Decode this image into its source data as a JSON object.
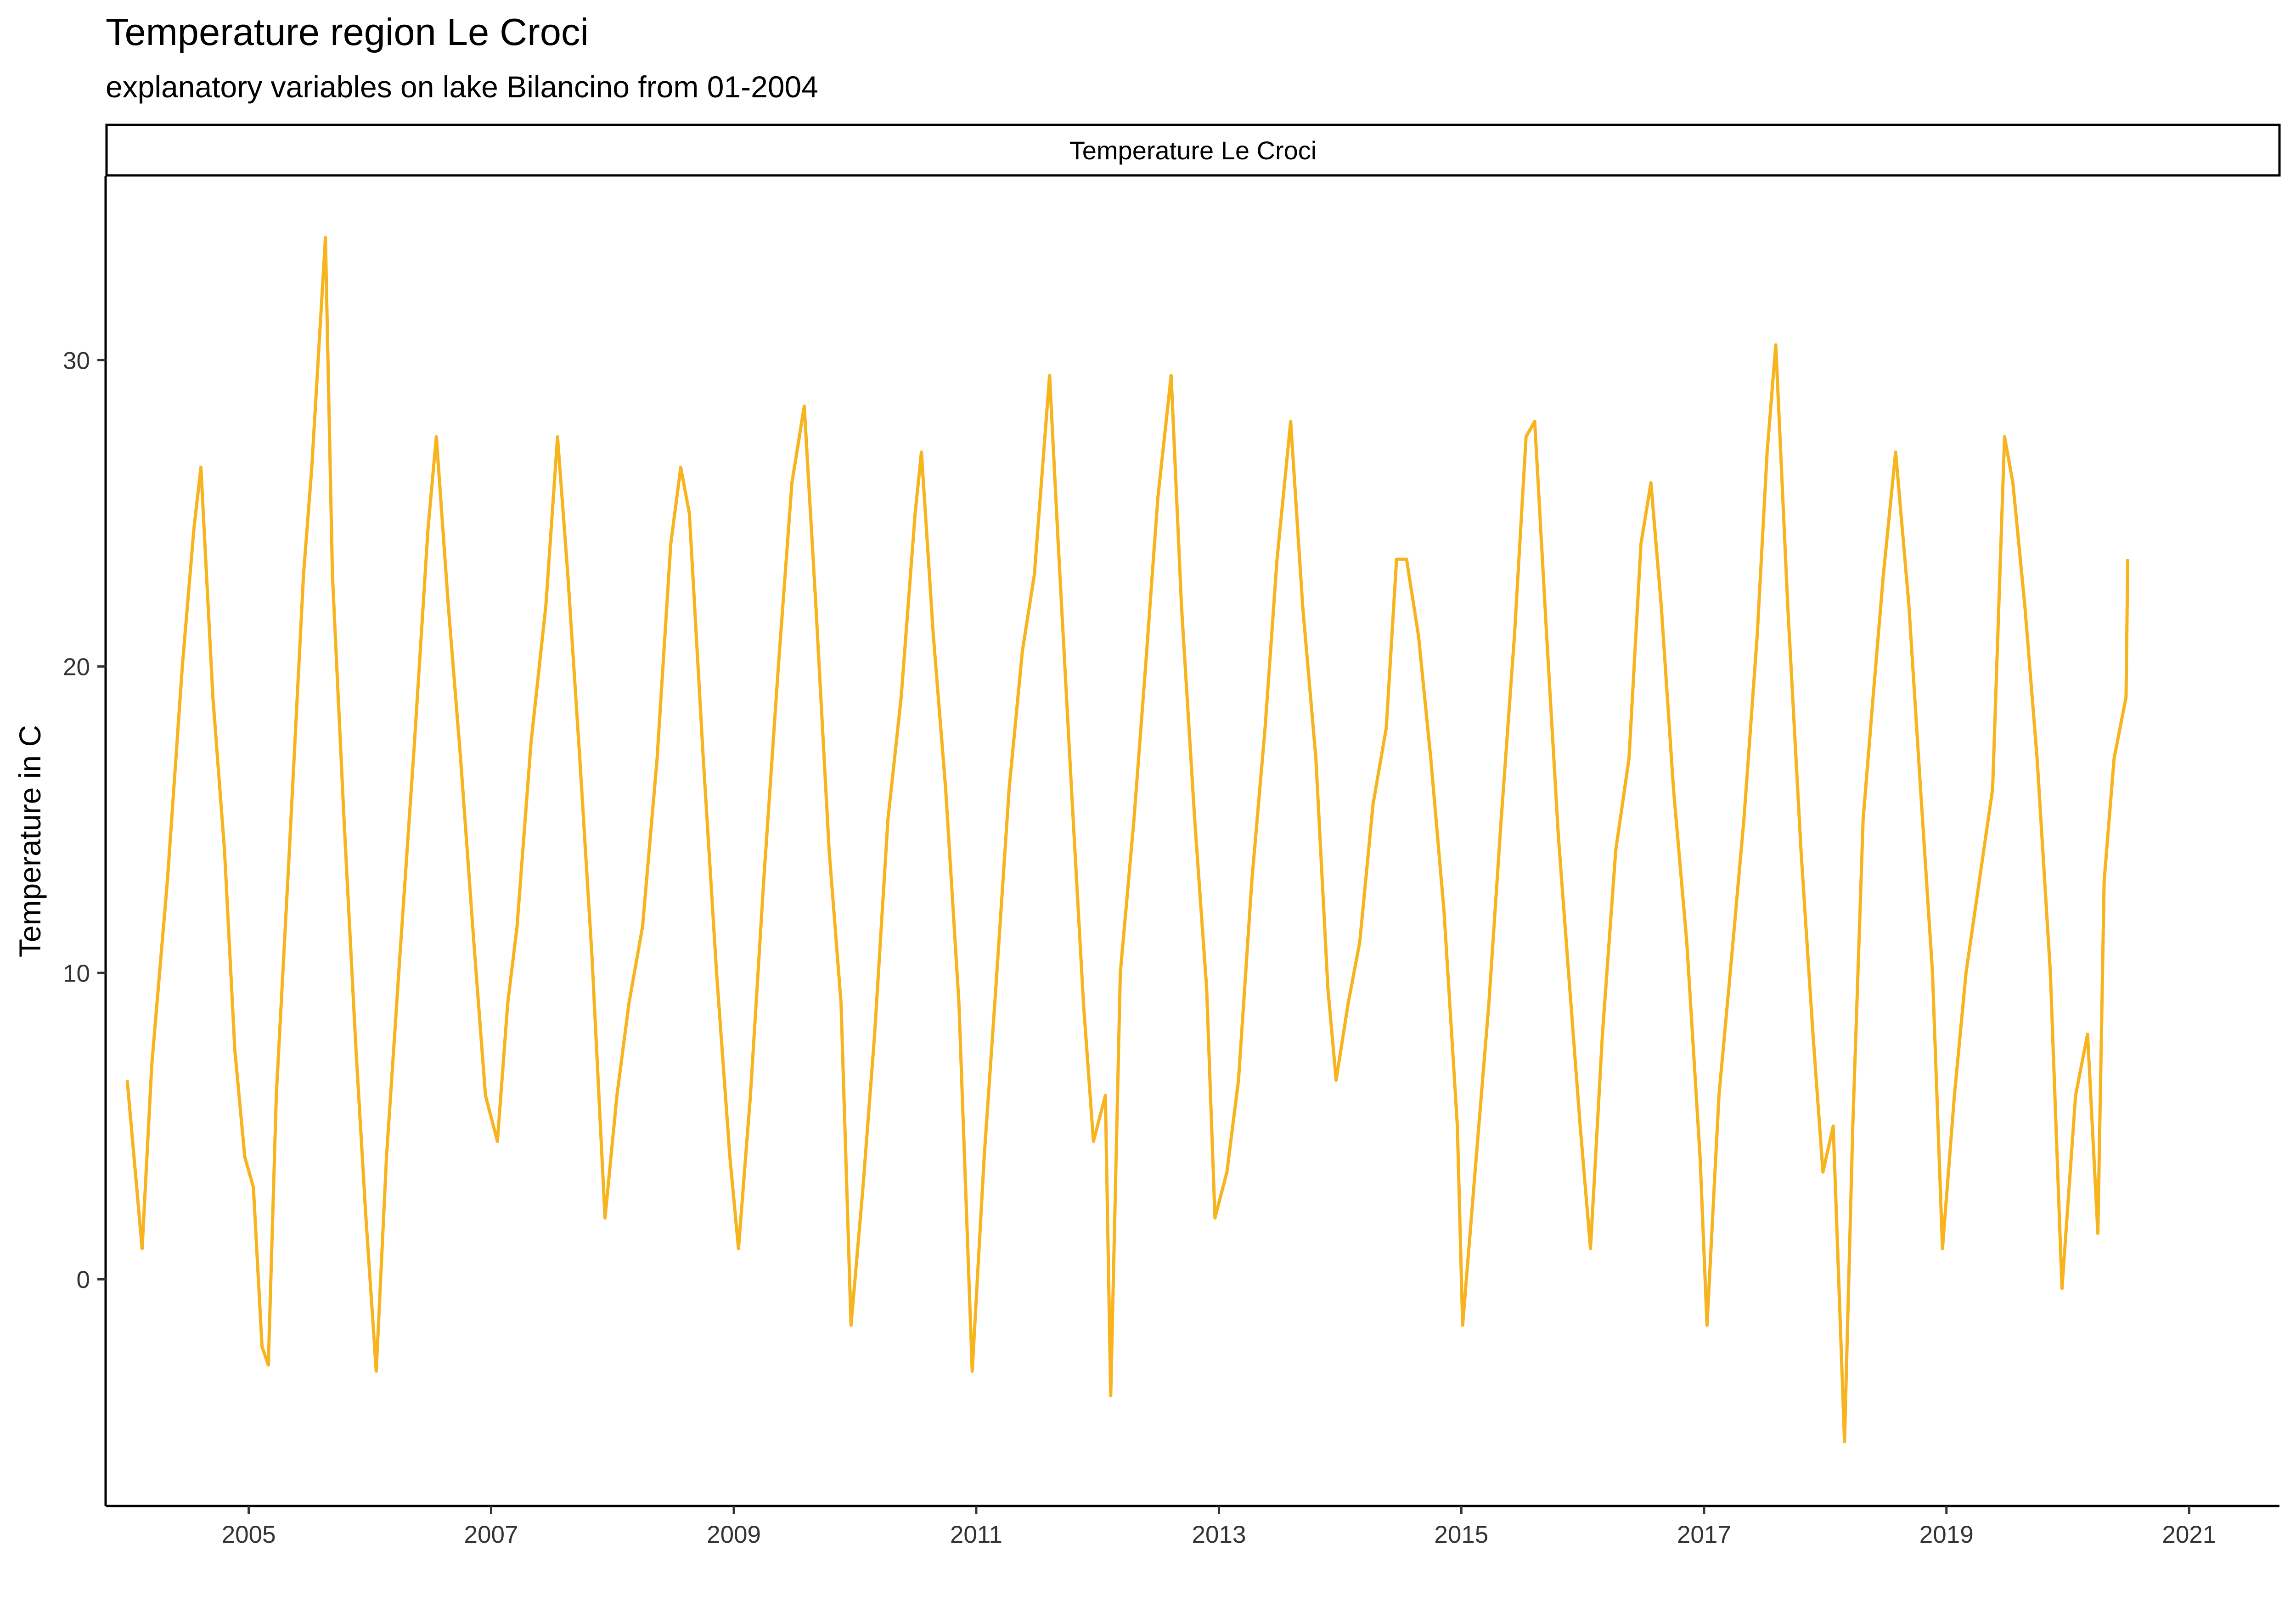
{
  "chart_data": {
    "type": "line",
    "title": "Temperature region Le Croci",
    "subtitle": "explanatory variables on lake Bilancino from 01-2004",
    "facet_label": "Temperature Le Croci",
    "xlabel": "",
    "ylabel": "Temperature in C",
    "x_ticks": [
      "2005",
      "2007",
      "2009",
      "2011",
      "2013",
      "2015",
      "2017",
      "2019",
      "2021"
    ],
    "y_ticks": [
      0,
      10,
      20,
      30
    ],
    "xlim": [
      "2003-10-28",
      "2021-09-30"
    ],
    "ylim": [
      -7.4,
      36.0
    ],
    "grid": false,
    "legend": "none",
    "line_color": "#F8B41E",
    "series": [
      {
        "values": [
          {
            "x": "2004-01-01",
            "y": 6.5
          },
          {
            "x": "2004-02-15",
            "y": 1.0
          },
          {
            "x": "2004-03-15",
            "y": 7.0
          },
          {
            "x": "2004-05-01",
            "y": 13.0
          },
          {
            "x": "2004-06-15",
            "y": 20.0
          },
          {
            "x": "2004-07-20",
            "y": 24.5
          },
          {
            "x": "2004-08-10",
            "y": 26.5
          },
          {
            "x": "2004-09-15",
            "y": 19.0
          },
          {
            "x": "2004-10-20",
            "y": 14.0
          },
          {
            "x": "2004-11-20",
            "y": 7.5
          },
          {
            "x": "2004-12-20",
            "y": 4.0
          },
          {
            "x": "2005-01-15",
            "y": 3.0
          },
          {
            "x": "2005-02-10",
            "y": -2.2
          },
          {
            "x": "2005-03-01",
            "y": -2.8
          },
          {
            "x": "2005-03-25",
            "y": 6.0
          },
          {
            "x": "2005-05-01",
            "y": 13.5
          },
          {
            "x": "2005-06-15",
            "y": 23.0
          },
          {
            "x": "2005-07-10",
            "y": 26.5
          },
          {
            "x": "2005-08-20",
            "y": 34.0
          },
          {
            "x": "2005-09-10",
            "y": 23.0
          },
          {
            "x": "2005-10-15",
            "y": 15.0
          },
          {
            "x": "2005-11-20",
            "y": 7.5
          },
          {
            "x": "2005-12-20",
            "y": 2.0
          },
          {
            "x": "2006-01-20",
            "y": -3.0
          },
          {
            "x": "2006-02-20",
            "y": 4.0
          },
          {
            "x": "2006-04-01",
            "y": 10.5
          },
          {
            "x": "2006-05-15",
            "y": 17.5
          },
          {
            "x": "2006-06-25",
            "y": 24.5
          },
          {
            "x": "2006-07-20",
            "y": 27.5
          },
          {
            "x": "2006-08-25",
            "y": 22.0
          },
          {
            "x": "2006-10-01",
            "y": 17.0
          },
          {
            "x": "2006-11-10",
            "y": 11.0
          },
          {
            "x": "2006-12-15",
            "y": 6.0
          },
          {
            "x": "2007-01-20",
            "y": 4.5
          },
          {
            "x": "2007-02-20",
            "y": 9.0
          },
          {
            "x": "2007-03-20",
            "y": 11.5
          },
          {
            "x": "2007-05-01",
            "y": 17.5
          },
          {
            "x": "2007-06-15",
            "y": 22.0
          },
          {
            "x": "2007-07-20",
            "y": 27.5
          },
          {
            "x": "2007-08-20",
            "y": 23.0
          },
          {
            "x": "2007-09-25",
            "y": 17.0
          },
          {
            "x": "2007-11-01",
            "y": 10.5
          },
          {
            "x": "2007-12-10",
            "y": 2.0
          },
          {
            "x": "2008-01-15",
            "y": 6.0
          },
          {
            "x": "2008-02-20",
            "y": 9.0
          },
          {
            "x": "2008-04-01",
            "y": 11.5
          },
          {
            "x": "2008-05-15",
            "y": 17.0
          },
          {
            "x": "2008-06-25",
            "y": 24.0
          },
          {
            "x": "2008-07-25",
            "y": 26.5
          },
          {
            "x": "2008-08-20",
            "y": 25.0
          },
          {
            "x": "2008-10-01",
            "y": 17.0
          },
          {
            "x": "2008-11-10",
            "y": 10.0
          },
          {
            "x": "2008-12-20",
            "y": 4.0
          },
          {
            "x": "2009-01-15",
            "y": 1.0
          },
          {
            "x": "2009-02-20",
            "y": 6.0
          },
          {
            "x": "2009-04-01",
            "y": 13.0
          },
          {
            "x": "2009-05-15",
            "y": 20.0
          },
          {
            "x": "2009-06-25",
            "y": 26.0
          },
          {
            "x": "2009-08-01",
            "y": 28.5
          },
          {
            "x": "2009-09-05",
            "y": 22.0
          },
          {
            "x": "2009-10-15",
            "y": 14.0
          },
          {
            "x": "2009-11-20",
            "y": 9.0
          },
          {
            "x": "2009-12-20",
            "y": -1.5
          },
          {
            "x": "2010-01-25",
            "y": 3.0
          },
          {
            "x": "2010-03-01",
            "y": 8.0
          },
          {
            "x": "2010-04-10",
            "y": 15.0
          },
          {
            "x": "2010-05-20",
            "y": 19.0
          },
          {
            "x": "2010-07-01",
            "y": 25.0
          },
          {
            "x": "2010-07-20",
            "y": 27.0
          },
          {
            "x": "2010-08-25",
            "y": 21.0
          },
          {
            "x": "2010-10-01",
            "y": 16.0
          },
          {
            "x": "2010-11-10",
            "y": 9.0
          },
          {
            "x": "2010-12-20",
            "y": -3.0
          },
          {
            "x": "2011-01-25",
            "y": 4.0
          },
          {
            "x": "2011-03-01",
            "y": 9.5
          },
          {
            "x": "2011-04-10",
            "y": 16.0
          },
          {
            "x": "2011-05-20",
            "y": 20.5
          },
          {
            "x": "2011-06-25",
            "y": 23.0
          },
          {
            "x": "2011-08-10",
            "y": 29.5
          },
          {
            "x": "2011-09-05",
            "y": 24.0
          },
          {
            "x": "2011-10-15",
            "y": 16.0
          },
          {
            "x": "2011-11-20",
            "y": 9.0
          },
          {
            "x": "2011-12-20",
            "y": 4.5
          },
          {
            "x": "2012-01-25",
            "y": 6.0
          },
          {
            "x": "2012-02-10",
            "y": -3.8
          },
          {
            "x": "2012-03-10",
            "y": 10.0
          },
          {
            "x": "2012-04-20",
            "y": 15.0
          },
          {
            "x": "2012-05-25",
            "y": 20.0
          },
          {
            "x": "2012-07-01",
            "y": 25.5
          },
          {
            "x": "2012-08-10",
            "y": 29.5
          },
          {
            "x": "2012-09-10",
            "y": 22.0
          },
          {
            "x": "2012-10-20",
            "y": 15.0
          },
          {
            "x": "2012-11-25",
            "y": 9.5
          },
          {
            "x": "2012-12-20",
            "y": 2.0
          },
          {
            "x": "2013-01-25",
            "y": 3.5
          },
          {
            "x": "2013-03-01",
            "y": 6.5
          },
          {
            "x": "2013-04-10",
            "y": 13.0
          },
          {
            "x": "2013-05-20",
            "y": 18.0
          },
          {
            "x": "2013-06-25",
            "y": 23.5
          },
          {
            "x": "2013-08-05",
            "y": 28.0
          },
          {
            "x": "2013-09-10",
            "y": 22.0
          },
          {
            "x": "2013-10-20",
            "y": 17.0
          },
          {
            "x": "2013-11-25",
            "y": 9.5
          },
          {
            "x": "2013-12-20",
            "y": 6.5
          },
          {
            "x": "2014-01-25",
            "y": 9.0
          },
          {
            "x": "2014-03-01",
            "y": 11.0
          },
          {
            "x": "2014-04-10",
            "y": 15.5
          },
          {
            "x": "2014-05-20",
            "y": 18.0
          },
          {
            "x": "2014-06-20",
            "y": 23.5
          },
          {
            "x": "2014-07-20",
            "y": 23.5
          },
          {
            "x": "2014-08-25",
            "y": 21.0
          },
          {
            "x": "2014-10-01",
            "y": 17.0
          },
          {
            "x": "2014-11-10",
            "y": 12.0
          },
          {
            "x": "2014-12-20",
            "y": 5.0
          },
          {
            "x": "2015-01-05",
            "y": -1.5
          },
          {
            "x": "2015-02-15",
            "y": 4.0
          },
          {
            "x": "2015-03-25",
            "y": 9.0
          },
          {
            "x": "2015-05-01",
            "y": 15.0
          },
          {
            "x": "2015-06-10",
            "y": 21.0
          },
          {
            "x": "2015-07-15",
            "y": 27.5
          },
          {
            "x": "2015-08-10",
            "y": 28.0
          },
          {
            "x": "2015-09-15",
            "y": 21.0
          },
          {
            "x": "2015-10-20",
            "y": 14.5
          },
          {
            "x": "2015-11-20",
            "y": 10.0
          },
          {
            "x": "2015-12-25",
            "y": 5.0
          },
          {
            "x": "2016-01-25",
            "y": 1.0
          },
          {
            "x": "2016-03-01",
            "y": 8.0
          },
          {
            "x": "2016-04-10",
            "y": 14.0
          },
          {
            "x": "2016-05-20",
            "y": 17.0
          },
          {
            "x": "2016-06-25",
            "y": 24.0
          },
          {
            "x": "2016-07-25",
            "y": 26.0
          },
          {
            "x": "2016-08-25",
            "y": 22.0
          },
          {
            "x": "2016-10-01",
            "y": 16.0
          },
          {
            "x": "2016-11-10",
            "y": 11.0
          },
          {
            "x": "2016-12-20",
            "y": 4.0
          },
          {
            "x": "2017-01-10",
            "y": -1.5
          },
          {
            "x": "2017-02-15",
            "y": 6.0
          },
          {
            "x": "2017-03-25",
            "y": 10.5
          },
          {
            "x": "2017-05-01",
            "y": 15.0
          },
          {
            "x": "2017-06-10",
            "y": 21.0
          },
          {
            "x": "2017-07-10",
            "y": 27.0
          },
          {
            "x": "2017-08-05",
            "y": 30.5
          },
          {
            "x": "2017-09-10",
            "y": 22.0
          },
          {
            "x": "2017-10-20",
            "y": 14.0
          },
          {
            "x": "2017-11-25",
            "y": 8.0
          },
          {
            "x": "2017-12-25",
            "y": 3.5
          },
          {
            "x": "2018-01-25",
            "y": 5.0
          },
          {
            "x": "2018-02-28",
            "y": -5.3
          },
          {
            "x": "2018-03-25",
            "y": 5.0
          },
          {
            "x": "2018-04-25",
            "y": 15.0
          },
          {
            "x": "2018-05-25",
            "y": 19.0
          },
          {
            "x": "2018-06-25",
            "y": 23.0
          },
          {
            "x": "2018-08-01",
            "y": 27.0
          },
          {
            "x": "2018-09-10",
            "y": 22.0
          },
          {
            "x": "2018-10-15",
            "y": 16.0
          },
          {
            "x": "2018-11-20",
            "y": 10.0
          },
          {
            "x": "2018-12-20",
            "y": 1.0
          },
          {
            "x": "2019-01-25",
            "y": 6.0
          },
          {
            "x": "2019-03-01",
            "y": 10.0
          },
          {
            "x": "2019-04-10",
            "y": 13.0
          },
          {
            "x": "2019-05-20",
            "y": 16.0
          },
          {
            "x": "2019-06-25",
            "y": 27.5
          },
          {
            "x": "2019-07-20",
            "y": 26.0
          },
          {
            "x": "2019-08-25",
            "y": 22.0
          },
          {
            "x": "2019-10-01",
            "y": 17.0
          },
          {
            "x": "2019-11-10",
            "y": 10.0
          },
          {
            "x": "2019-12-15",
            "y": -0.3
          },
          {
            "x": "2020-01-25",
            "y": 6.0
          },
          {
            "x": "2020-03-01",
            "y": 8.0
          },
          {
            "x": "2020-04-01",
            "y": 1.5
          },
          {
            "x": "2020-04-20",
            "y": 13.0
          },
          {
            "x": "2020-05-20",
            "y": 17.0
          },
          {
            "x": "2020-06-25",
            "y": 19.0
          },
          {
            "x": "2020-06-30",
            "y": 23.5
          }
        ]
      }
    ]
  }
}
